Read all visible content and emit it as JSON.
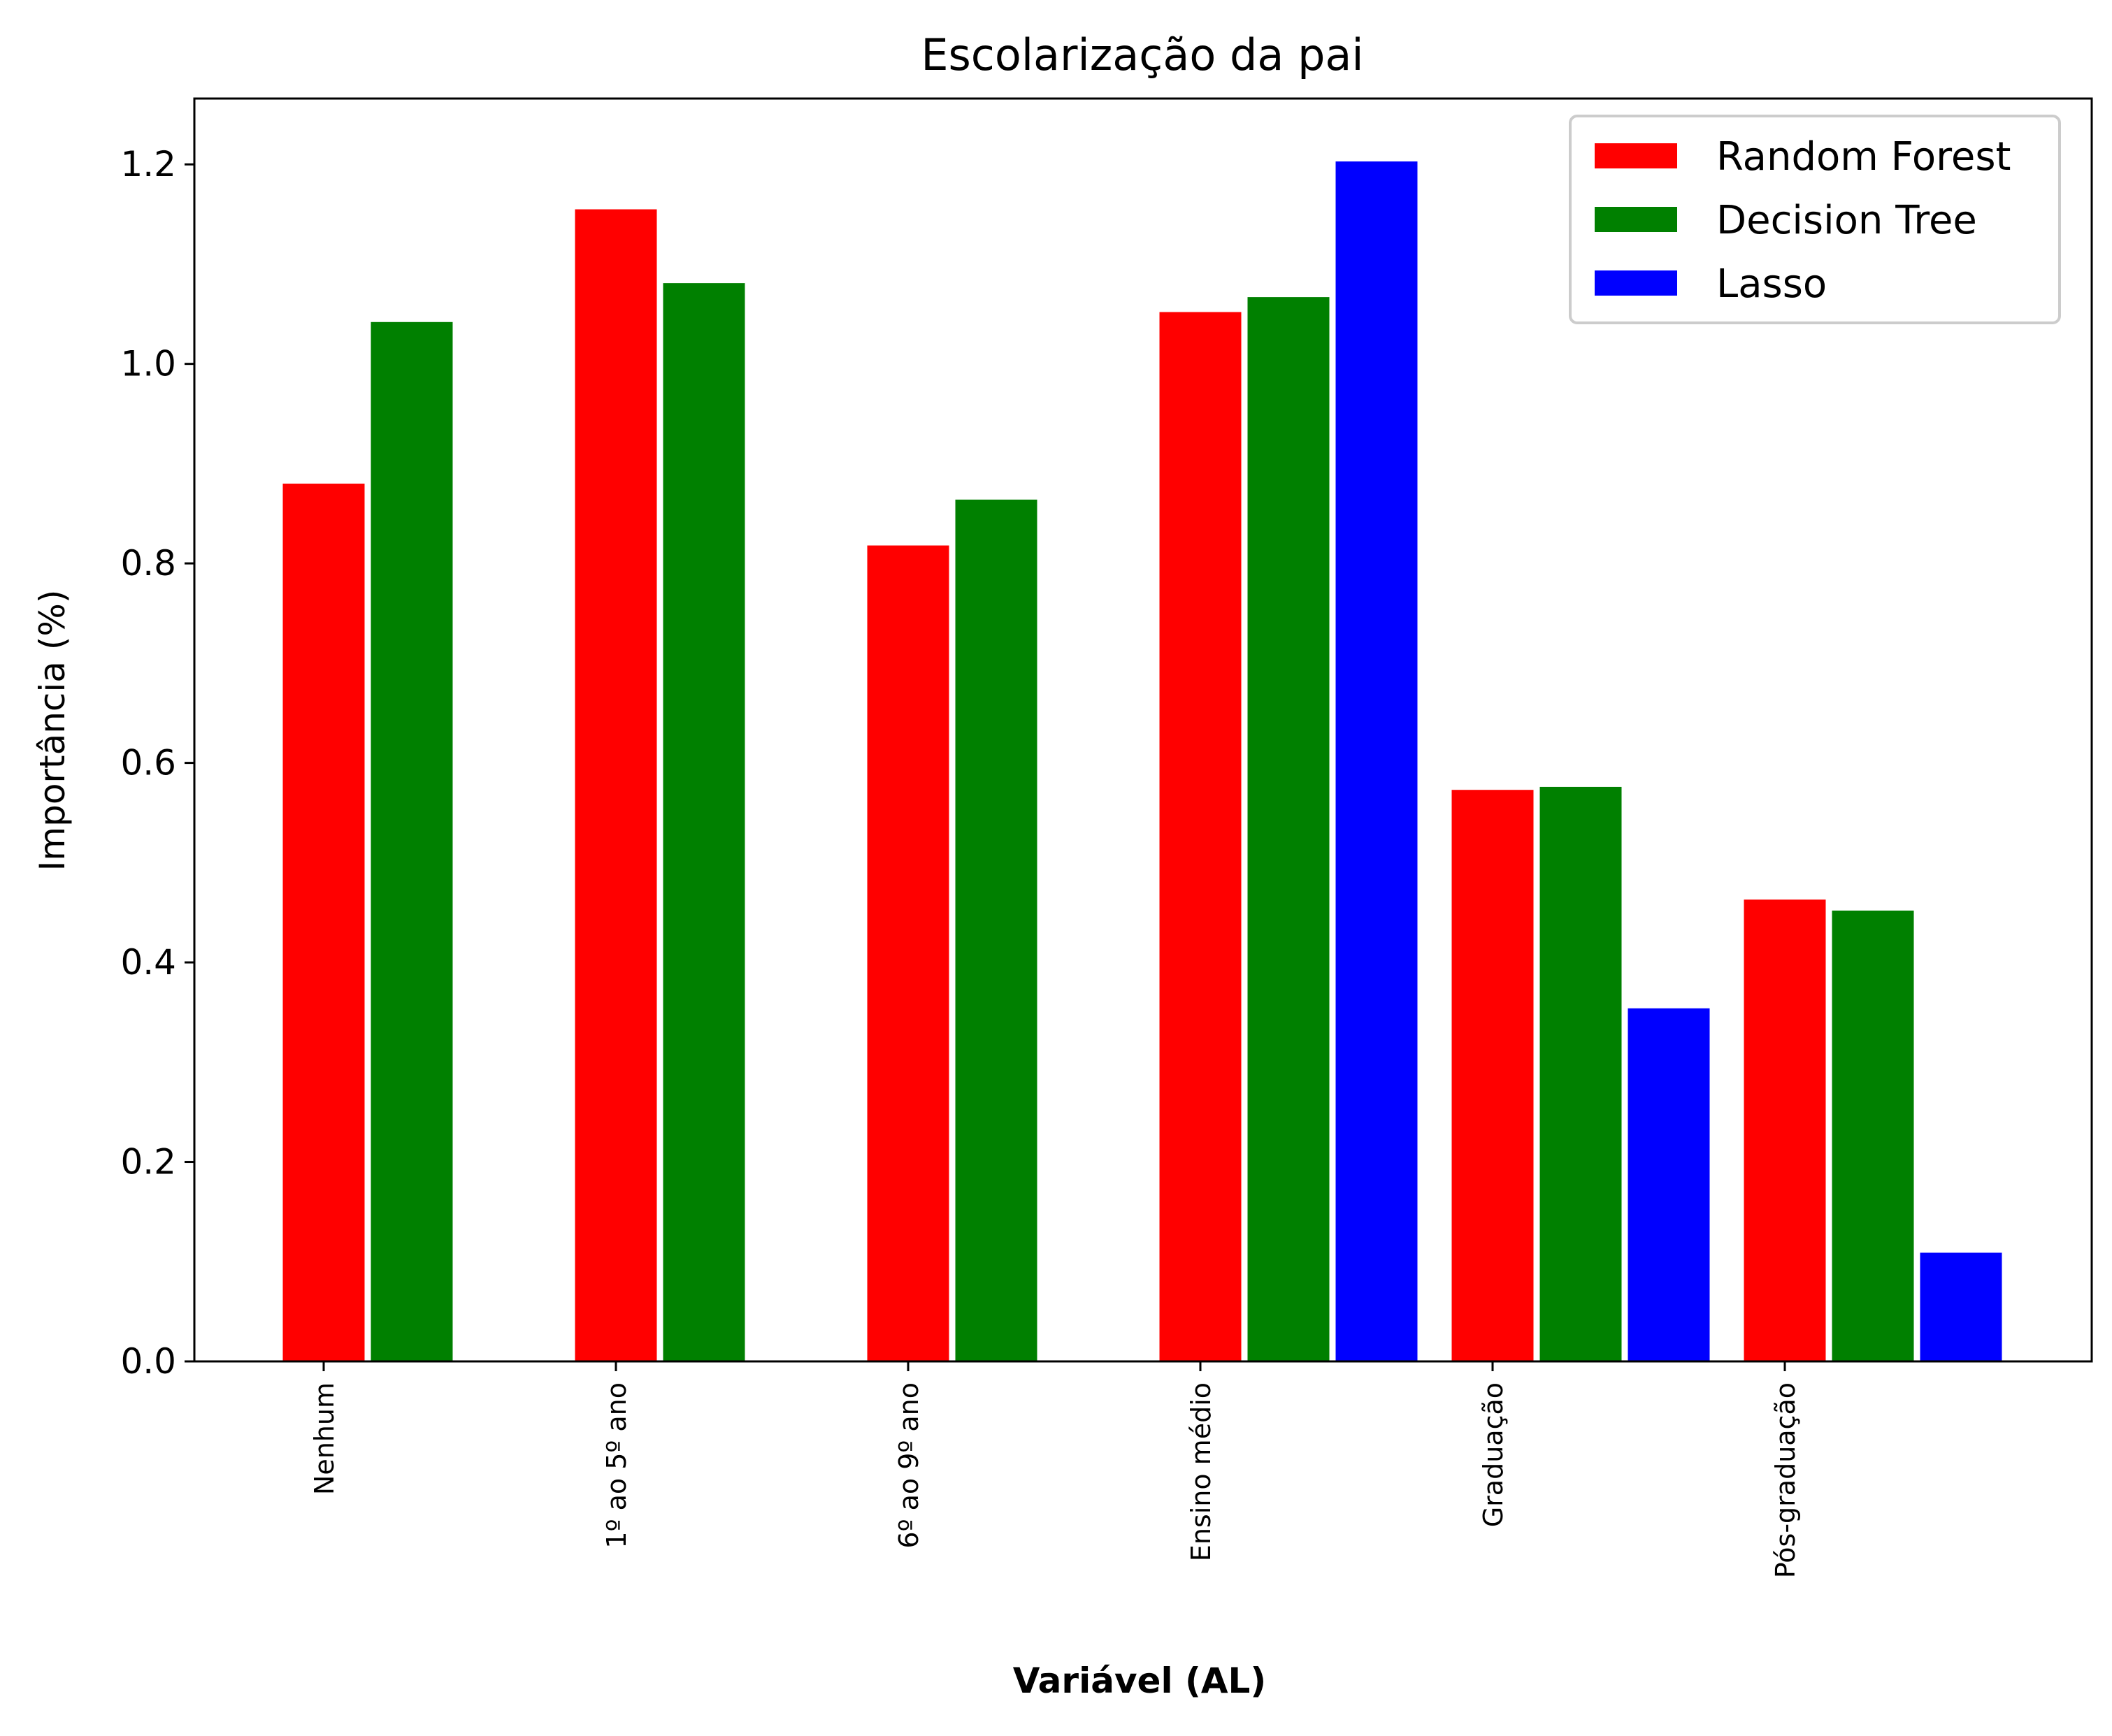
{
  "chart_data": {
    "type": "bar",
    "title": "Escolarização da pai",
    "xlabel": "Variável (AL)",
    "ylabel": "Importância (%)",
    "categories": [
      "Nenhum",
      "1º ao 5º ano",
      "6º ao 9º ano",
      "Ensino médio",
      "Graduação",
      "Pós-graduação"
    ],
    "series": [
      {
        "name": "Random Forest",
        "color": "#ff0000",
        "values": [
          0.881,
          1.156,
          0.819,
          1.053,
          0.574,
          0.464
        ]
      },
      {
        "name": "Decision Tree",
        "color": "#008000",
        "values": [
          1.043,
          1.082,
          0.865,
          1.068,
          0.577,
          0.453
        ]
      },
      {
        "name": "Lasso",
        "color": "#0000ff",
        "values": [
          null,
          null,
          null,
          1.204,
          0.355,
          0.11
        ]
      }
    ],
    "ylim": [
      0,
      1.266
    ],
    "yticks": [
      "0.0",
      "0.2",
      "0.4",
      "0.6",
      "0.8",
      "1.0",
      "1.2"
    ],
    "legend": "top-right",
    "grid": false
  }
}
